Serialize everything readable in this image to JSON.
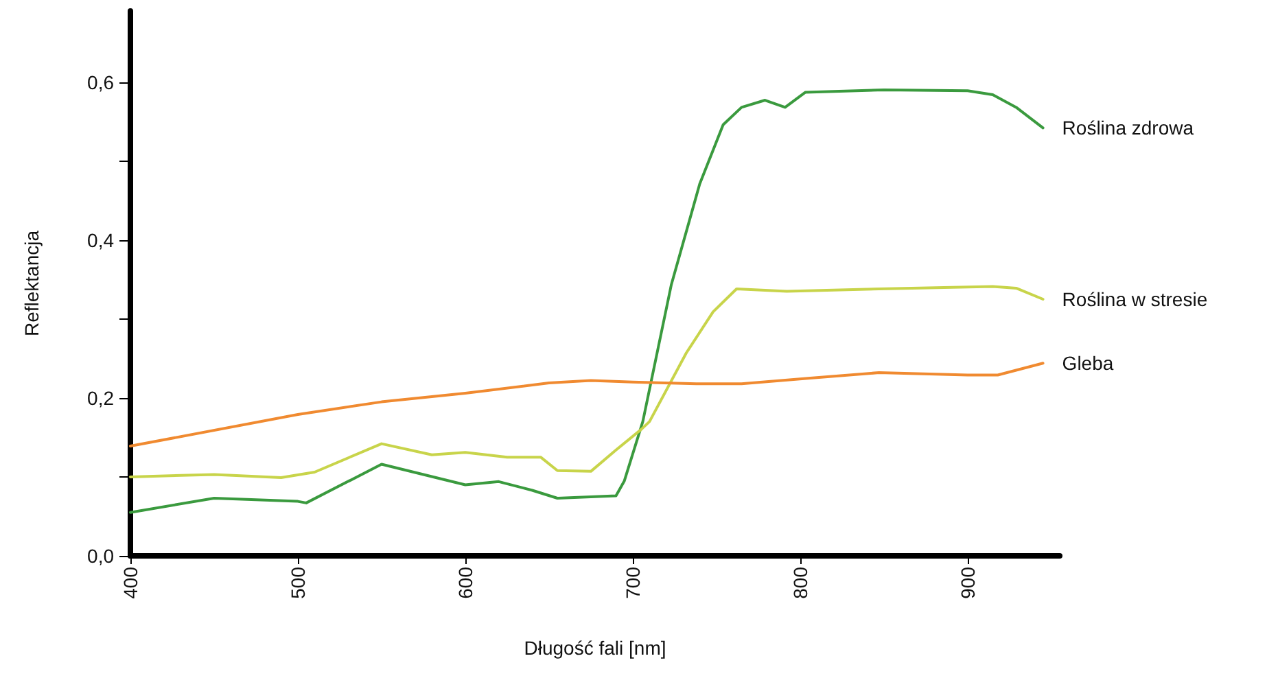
{
  "chart_data": {
    "type": "line",
    "xlabel": "Długość fali [nm]",
    "ylabel": "Reflektancja",
    "xlim": [
      400,
      955
    ],
    "xticks": [
      400,
      500,
      600,
      700,
      800,
      900
    ],
    "ylim": [
      0,
      0.69
    ],
    "yticks": [
      {
        "value": 0,
        "label": "0,0"
      },
      {
        "value": 0.1,
        "label": null
      },
      {
        "value": 0.2,
        "label": "0,2"
      },
      {
        "value": 0.3,
        "label": null
      },
      {
        "value": 0.4,
        "label": "0,4"
      },
      {
        "value": 0.5,
        "label": null
      },
      {
        "value": 0.6,
        "label": "0,6"
      }
    ],
    "series": [
      {
        "name": "Roślina zdrowa",
        "color": "#3a9a3e",
        "x": [
          400,
          450,
          500,
          505,
          550,
          600,
          620,
          640,
          655,
          690,
          695,
          706,
          723,
          740,
          754,
          765,
          779,
          791,
          803,
          850,
          900,
          915,
          929,
          945
        ],
        "values": [
          0.055,
          0.073,
          0.069,
          0.067,
          0.116,
          0.09,
          0.094,
          0.083,
          0.073,
          0.076,
          0.095,
          0.17,
          0.343,
          0.471,
          0.546,
          0.568,
          0.577,
          0.568,
          0.587,
          0.59,
          0.589,
          0.584,
          0.568,
          0.542
        ]
      },
      {
        "name": "Roślina w stresie",
        "color": "#c8d44a",
        "x": [
          400,
          450,
          490,
          510,
          550,
          580,
          600,
          625,
          645,
          655,
          675,
          690,
          705,
          710,
          732,
          748,
          762,
          792,
          847,
          915,
          929,
          945
        ],
        "values": [
          0.1,
          0.103,
          0.099,
          0.106,
          0.142,
          0.128,
          0.131,
          0.125,
          0.125,
          0.108,
          0.107,
          0.134,
          0.16,
          0.17,
          0.257,
          0.309,
          0.338,
          0.335,
          0.338,
          0.341,
          0.339,
          0.325
        ]
      },
      {
        "name": "Gleba",
        "color": "#f08a30",
        "x": [
          400,
          500,
          550,
          600,
          650,
          675,
          700,
          738,
          765,
          806,
          847,
          900,
          918,
          945
        ],
        "values": [
          0.139,
          0.179,
          0.195,
          0.206,
          0.219,
          0.222,
          0.22,
          0.218,
          0.218,
          0.225,
          0.232,
          0.229,
          0.229,
          0.244
        ]
      }
    ]
  }
}
